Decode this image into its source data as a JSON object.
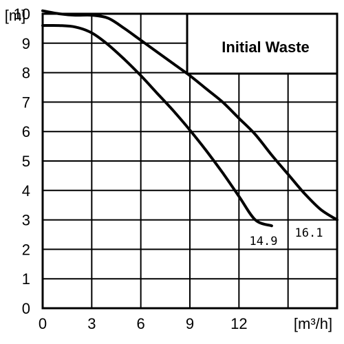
{
  "chart_data": {
    "type": "line",
    "title": "Initial Waste",
    "xlabel": "[m³/h]",
    "ylabel": "[m]",
    "xlim": [
      0,
      18
    ],
    "ylim": [
      0,
      10
    ],
    "x_ticks": [
      "0",
      "3",
      "6",
      "9",
      "12"
    ],
    "y_ticks": [
      "0",
      "1",
      "2",
      "3",
      "4",
      "5",
      "6",
      "7",
      "8",
      "9",
      "10"
    ],
    "grid": true,
    "series": [
      {
        "name": "16.1",
        "x": [
          0,
          1,
          2,
          3,
          4,
          5,
          6,
          7,
          8,
          9,
          10,
          11,
          12,
          13,
          14,
          15,
          16,
          17,
          18
        ],
        "y": [
          10.1,
          10.0,
          9.95,
          9.95,
          9.85,
          9.5,
          9.1,
          8.7,
          8.3,
          7.9,
          7.45,
          7.0,
          6.45,
          5.9,
          5.2,
          4.55,
          3.9,
          3.35,
          3.0
        ]
      },
      {
        "name": "14.9",
        "x": [
          0,
          1,
          2,
          3,
          4,
          5,
          6,
          7,
          8,
          9,
          10,
          11,
          12,
          13,
          14
        ],
        "y": [
          9.6,
          9.6,
          9.55,
          9.35,
          8.95,
          8.45,
          7.9,
          7.3,
          6.7,
          6.05,
          5.35,
          4.6,
          3.8,
          3.0,
          2.8
        ]
      }
    ]
  }
}
